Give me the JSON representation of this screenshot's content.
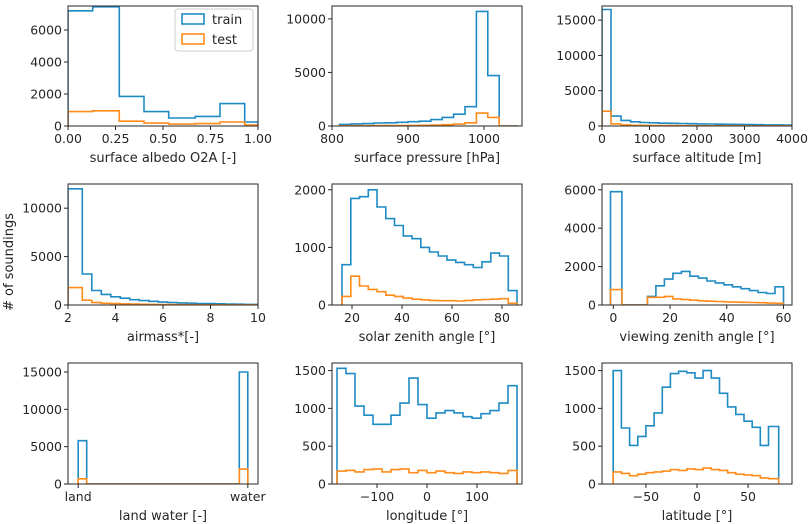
{
  "figure": {
    "ylabel": "# of soundings",
    "legend": {
      "position": "top-right of first panel",
      "entries": [
        "train",
        "test"
      ]
    }
  },
  "colors": {
    "train": "#1f8bc4",
    "test": "#ff8c1a",
    "axis": "#262626"
  },
  "chart_data": [
    {
      "type": "histogram",
      "xlabel": "surface albedo O2A [-]",
      "xlim": [
        0,
        1.0
      ],
      "ylim": [
        0,
        7500
      ],
      "xticks": [
        0,
        0.25,
        0.5,
        0.75,
        1.0
      ],
      "xtick_labels": [
        "0.00",
        "0.25",
        "0.50",
        "0.75",
        "1.00"
      ],
      "yticks": [
        0,
        2000,
        4000,
        6000
      ],
      "ytick_labels": [
        "0",
        "2000",
        "4000",
        "6000"
      ],
      "edges": [
        0,
        0.13,
        0.27,
        0.4,
        0.53,
        0.67,
        0.8,
        0.93,
        1.0
      ],
      "series": [
        {
          "name": "train",
          "values": [
            7200,
            7450,
            1850,
            900,
            500,
            600,
            1400,
            250
          ]
        },
        {
          "name": "test",
          "values": [
            900,
            950,
            300,
            180,
            120,
            150,
            250,
            60
          ]
        }
      ]
    },
    {
      "type": "histogram",
      "xlabel": "surface pressure [hPa]",
      "xlim": [
        800,
        1050
      ],
      "ylim": [
        0,
        11200
      ],
      "xticks": [
        800,
        900,
        1000
      ],
      "xtick_labels": [
        "800",
        "900",
        "1000"
      ],
      "yticks": [
        0,
        5000,
        10000
      ],
      "ytick_labels": [
        "0",
        "5000",
        "10000"
      ],
      "edges": [
        810,
        825,
        840,
        855,
        870,
        885,
        900,
        915,
        930,
        945,
        960,
        975,
        990,
        1005,
        1020,
        1035,
        1045
      ],
      "series": [
        {
          "name": "train",
          "values": [
            150,
            200,
            220,
            280,
            300,
            350,
            400,
            450,
            600,
            800,
            1100,
            1800,
            10700,
            4700,
            0,
            0
          ]
        },
        {
          "name": "test",
          "values": [
            20,
            25,
            30,
            35,
            40,
            50,
            60,
            70,
            80,
            120,
            180,
            300,
            1200,
            800,
            0,
            0
          ]
        }
      ]
    },
    {
      "type": "histogram",
      "xlabel": "surface altitude [m]",
      "xlim": [
        0,
        4000
      ],
      "ylim": [
        0,
        17000
      ],
      "xticks": [
        0,
        1000,
        2000,
        3000,
        4000
      ],
      "xtick_labels": [
        "0",
        "1000",
        "2000",
        "3000",
        "4000"
      ],
      "yticks": [
        0,
        5000,
        10000,
        15000
      ],
      "ytick_labels": [
        "0",
        "5000",
        "10000",
        "15000"
      ],
      "edges": [
        0,
        190,
        400,
        600,
        800,
        1000,
        1200,
        1400,
        1600,
        1800,
        2000,
        2200,
        2400,
        2600,
        2800,
        3000,
        3200,
        3400,
        3600,
        3800,
        4000
      ],
      "series": [
        {
          "name": "train",
          "values": [
            16500,
            1400,
            800,
            600,
            500,
            450,
            400,
            380,
            350,
            320,
            300,
            280,
            260,
            240,
            220,
            200,
            180,
            160,
            150,
            140
          ]
        },
        {
          "name": "test",
          "values": [
            2100,
            300,
            150,
            100,
            80,
            70,
            60,
            50,
            45,
            40,
            35,
            30,
            28,
            25,
            22,
            20,
            18,
            16,
            14,
            12
          ]
        }
      ]
    },
    {
      "type": "histogram",
      "xlabel": "airmass*[-]",
      "xlim": [
        2,
        10
      ],
      "ylim": [
        0,
        12500
      ],
      "xticks": [
        2,
        4,
        6,
        8,
        10
      ],
      "xtick_labels": [
        "2",
        "4",
        "6",
        "8",
        "10"
      ],
      "yticks": [
        0,
        5000,
        10000
      ],
      "ytick_labels": [
        "0",
        "5000",
        "10000"
      ],
      "edges": [
        2.0,
        2.1,
        2.6,
        3.0,
        3.4,
        3.8,
        4.2,
        4.6,
        5.0,
        5.4,
        5.8,
        6.2,
        6.6,
        7.0,
        7.4,
        7.8,
        8.2,
        8.6,
        9.0,
        9.4,
        10.0
      ],
      "series": [
        {
          "name": "train",
          "values": [
            12000,
            12000,
            3200,
            1500,
            1100,
            850,
            700,
            550,
            450,
            380,
            300,
            260,
            220,
            190,
            160,
            140,
            120,
            100,
            80,
            60
          ]
        },
        {
          "name": "test",
          "values": [
            1800,
            1800,
            500,
            250,
            180,
            140,
            110,
            90,
            70,
            60,
            50,
            40,
            35,
            30,
            25,
            22,
            18,
            15,
            12,
            10
          ]
        }
      ]
    },
    {
      "type": "histogram",
      "xlabel": "solar zenith angle [°]",
      "xlim": [
        12,
        88
      ],
      "ylim": [
        0,
        2100
      ],
      "xticks": [
        20,
        40,
        60,
        80
      ],
      "xtick_labels": [
        "20",
        "40",
        "60",
        "80"
      ],
      "yticks": [
        0,
        1000,
        2000
      ],
      "ytick_labels": [
        "0",
        "1000",
        "2000"
      ],
      "edges": [
        16,
        19.5,
        23,
        26.5,
        30,
        33.5,
        37,
        40.5,
        44,
        47.5,
        51,
        54.5,
        58,
        61.5,
        65,
        68.5,
        72,
        75.5,
        79,
        82.5,
        86
      ],
      "series": [
        {
          "name": "train",
          "values": [
            700,
            1850,
            1880,
            2000,
            1700,
            1500,
            1380,
            1200,
            1150,
            1000,
            920,
            850,
            780,
            740,
            700,
            650,
            750,
            900,
            850,
            250
          ]
        },
        {
          "name": "test",
          "values": [
            150,
            500,
            330,
            270,
            230,
            170,
            150,
            120,
            100,
            90,
            80,
            75,
            75,
            70,
            80,
            90,
            95,
            100,
            110,
            30
          ]
        }
      ]
    },
    {
      "type": "histogram",
      "xlabel": "viewing zenith angle [°]",
      "xlim": [
        -4,
        63
      ],
      "ylim": [
        0,
        6300
      ],
      "xticks": [
        0,
        20,
        40,
        60
      ],
      "xtick_labels": [
        "0",
        "20",
        "40",
        "60"
      ],
      "yticks": [
        0,
        2000,
        4000,
        6000
      ],
      "ytick_labels": [
        "0",
        "2000",
        "4000",
        "6000"
      ],
      "edges": [
        -1,
        3,
        6,
        9,
        12,
        15,
        18,
        21,
        24,
        27,
        30,
        33,
        36,
        39,
        42,
        45,
        48,
        51,
        54,
        57,
        60
      ],
      "series": [
        {
          "name": "train",
          "values": [
            5900,
            0,
            0,
            0,
            450,
            1000,
            1350,
            1650,
            1750,
            1500,
            1400,
            1250,
            1150,
            1050,
            950,
            850,
            750,
            650,
            600,
            950
          ]
        },
        {
          "name": "test",
          "values": [
            800,
            0,
            0,
            0,
            400,
            400,
            450,
            320,
            280,
            250,
            220,
            200,
            180,
            160,
            150,
            140,
            130,
            120,
            100,
            90
          ]
        }
      ]
    },
    {
      "type": "histogram",
      "xlabel": "land water [-]",
      "xlim": [
        -0.06,
        1.06
      ],
      "ylim": [
        0,
        16200
      ],
      "xticks": [
        0,
        1
      ],
      "xtick_labels": [
        "land",
        "water"
      ],
      "yticks": [
        0,
        5000,
        10000,
        15000
      ],
      "ytick_labels": [
        "0",
        "5000",
        "10000",
        "15000"
      ],
      "edges": [
        0,
        0.05,
        0.95,
        1.0
      ],
      "series": [
        {
          "name": "train",
          "values": [
            5800,
            0,
            15000
          ]
        },
        {
          "name": "test",
          "values": [
            700,
            0,
            2000
          ]
        }
      ]
    },
    {
      "type": "histogram",
      "xlabel": "longitude [°]",
      "xlim": [
        -190,
        190
      ],
      "ylim": [
        0,
        1600
      ],
      "xticks": [
        -100,
        0,
        100
      ],
      "xtick_labels": [
        "−100",
        "0",
        "100"
      ],
      "yticks": [
        0,
        500,
        1000,
        1500
      ],
      "ytick_labels": [
        "0",
        "500",
        "1000",
        "1500"
      ],
      "edges": [
        -180,
        -162,
        -144,
        -126,
        -108,
        -90,
        -72,
        -54,
        -36,
        -18,
        0,
        18,
        36,
        54,
        72,
        90,
        108,
        126,
        144,
        162,
        180
      ],
      "series": [
        {
          "name": "train",
          "values": [
            1530,
            1460,
            1030,
            910,
            790,
            790,
            910,
            1070,
            1400,
            1050,
            870,
            940,
            970,
            940,
            890,
            870,
            930,
            970,
            1070,
            1300
          ]
        },
        {
          "name": "test",
          "values": [
            170,
            180,
            160,
            190,
            200,
            160,
            190,
            200,
            150,
            180,
            150,
            170,
            150,
            140,
            160,
            150,
            160,
            150,
            140,
            180
          ]
        }
      ]
    },
    {
      "type": "histogram",
      "xlabel": "latitude [°]",
      "xlim": [
        -93,
        93
      ],
      "ylim": [
        0,
        1600
      ],
      "xticks": [
        -50,
        0,
        50
      ],
      "xtick_labels": [
        "−50",
        "0",
        "50"
      ],
      "yticks": [
        0,
        500,
        1000,
        1500
      ],
      "ytick_labels": [
        "0",
        "500",
        "1000",
        "1500"
      ],
      "edges": [
        -82,
        -74,
        -66,
        -58,
        -50,
        -42,
        -34,
        -26,
        -18,
        -10,
        -2,
        6,
        14,
        22,
        30,
        38,
        46,
        54,
        62,
        70,
        80
      ],
      "series": [
        {
          "name": "train",
          "values": [
            1500,
            740,
            510,
            630,
            770,
            940,
            1280,
            1460,
            1490,
            1470,
            1400,
            1500,
            1400,
            1200,
            1020,
            920,
            830,
            750,
            510,
            760
          ]
        },
        {
          "name": "test",
          "values": [
            160,
            140,
            110,
            130,
            150,
            160,
            170,
            190,
            180,
            200,
            190,
            210,
            190,
            180,
            150,
            130,
            120,
            110,
            80,
            70
          ]
        }
      ]
    }
  ]
}
